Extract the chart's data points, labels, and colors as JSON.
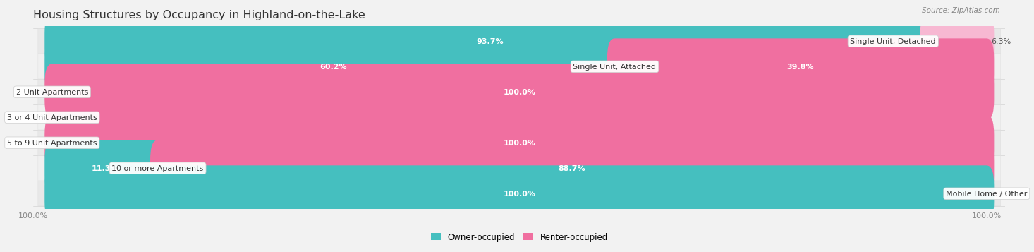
{
  "title": "Housing Structures by Occupancy in Highland-on-the-Lake",
  "source": "Source: ZipAtlas.com",
  "categories": [
    "Single Unit, Detached",
    "Single Unit, Attached",
    "2 Unit Apartments",
    "3 or 4 Unit Apartments",
    "5 to 9 Unit Apartments",
    "10 or more Apartments",
    "Mobile Home / Other"
  ],
  "owner_pct": [
    93.7,
    60.2,
    0.0,
    0.0,
    0.0,
    11.3,
    100.0
  ],
  "renter_pct": [
    6.3,
    39.8,
    100.0,
    0.0,
    100.0,
    88.7,
    0.0
  ],
  "owner_color": "#45BFBF",
  "renter_color": "#F06FA0",
  "renter_color_light": "#F7B8D2",
  "owner_color_light": "#8ED4D4",
  "bg_color": "#F2F2F2",
  "row_bg_even": "#ECECEC",
  "row_bg_odd": "#F8F8F8",
  "bar_height": 0.62,
  "label_fontsize": 8.0,
  "title_fontsize": 11.5,
  "axis_label_fontsize": 8.0,
  "cat_fontsize": 8.0,
  "total_width": 100
}
